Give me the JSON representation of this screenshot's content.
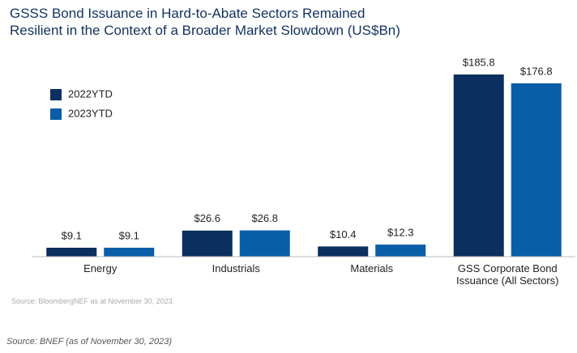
{
  "chart_data": {
    "type": "bar",
    "title": "GSSS Bond Issuance in Hard-to-Abate Sectors Remained Resilient in the Context of a Broader Market Slowdown (US$Bn)",
    "categories": [
      "Energy",
      "Industrials",
      "Materials",
      "GSS Corporate Bond Issuance (All Sectors)"
    ],
    "series": [
      {
        "name": "2022YTD",
        "color": "#0b2f5e",
        "values": [
          9.1,
          26.6,
          10.4,
          185.8
        ],
        "value_labels": [
          "$9.1",
          "$26.6",
          "$10.4",
          "$185.8"
        ]
      },
      {
        "name": "2023YTD",
        "color": "#0a5ea8",
        "values": [
          9.1,
          26.8,
          12.3,
          176.8
        ],
        "value_labels": [
          "$9.1",
          "$26.8",
          "$12.3",
          "$176.8"
        ]
      }
    ],
    "legend": "upper left",
    "source": "Source: BloombergNEF as at November 30, 2023."
  },
  "footer_note": "Source: BNEF (as of November 30, 2023)"
}
